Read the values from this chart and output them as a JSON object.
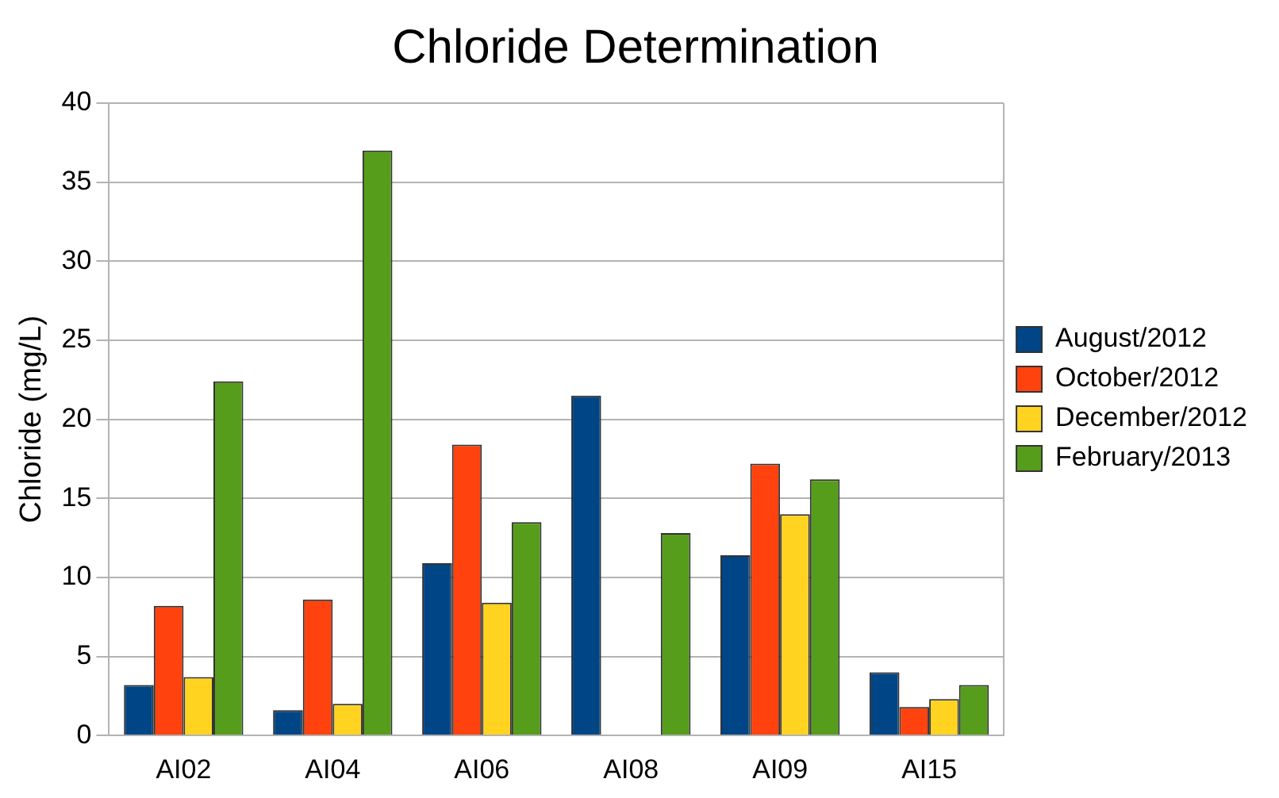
{
  "chart_data": {
    "type": "bar",
    "title": "Chloride Determination",
    "ylabel": "Chloride (mg/L)",
    "categories": [
      "AI02",
      "AI04",
      "AI06",
      "AI08",
      "AI09",
      "AI15"
    ],
    "series": [
      {
        "name": "August/2012",
        "color": "#004586",
        "values": [
          3.2,
          1.6,
          10.9,
          21.5,
          11.4,
          4.0
        ]
      },
      {
        "name": "October/2012",
        "color": "#ff420e",
        "values": [
          8.2,
          8.6,
          18.4,
          null,
          17.2,
          1.8
        ]
      },
      {
        "name": "December/2012",
        "color": "#ffd320",
        "values": [
          3.7,
          2.0,
          8.4,
          null,
          14.0,
          2.3
        ]
      },
      {
        "name": "February/2013",
        "color": "#579d1c",
        "values": [
          22.4,
          37.0,
          13.5,
          12.8,
          16.2,
          3.2
        ]
      }
    ],
    "ylim": [
      0,
      40
    ],
    "yticks": [
      0,
      5,
      10,
      15,
      20,
      25,
      30,
      35,
      40
    ],
    "grid": "y",
    "legend": "right"
  }
}
